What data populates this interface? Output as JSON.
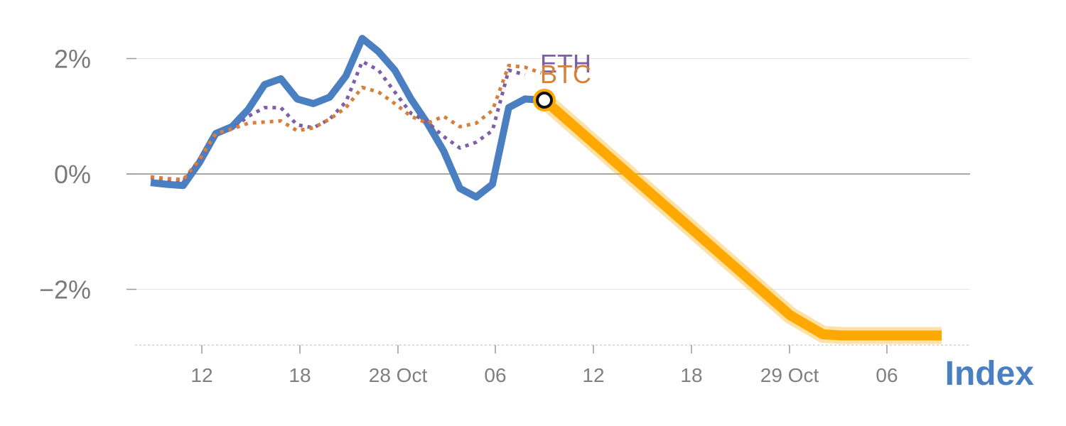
{
  "chart_data": {
    "type": "line",
    "title": "Index",
    "xlabel": "",
    "ylabel": "",
    "ylim": [
      -2.95,
      2.9
    ],
    "x_tick_labels": [
      "12",
      "18",
      "28 Oct",
      "06",
      "12",
      "18",
      "29 Oct",
      "06"
    ],
    "y_ticks": [
      {
        "value": 2,
        "label": "2%"
      },
      {
        "value": 0,
        "label": "0%"
      },
      {
        "value": -2,
        "label": "−2%"
      }
    ],
    "zero_line": true,
    "grid": true,
    "series": [
      {
        "name": "",
        "style": "solid",
        "color": "#4a7fc1",
        "values": [
          -0.15,
          -0.18,
          -0.2,
          0.2,
          0.7,
          0.82,
          1.12,
          1.55,
          1.65,
          1.3,
          1.22,
          1.33,
          1.7,
          2.35,
          2.12,
          1.8,
          1.3,
          0.88,
          0.4,
          -0.25,
          -0.4,
          -0.18,
          1.15,
          1.3,
          1.28
        ]
      },
      {
        "name": "ETH",
        "style": "dotted",
        "color": "#7d5fa6",
        "values": [
          -0.06,
          -0.1,
          -0.12,
          0.25,
          0.68,
          0.78,
          1.0,
          1.15,
          1.15,
          0.85,
          0.8,
          0.95,
          1.25,
          1.95,
          1.8,
          1.42,
          1.05,
          0.9,
          0.65,
          0.45,
          0.55,
          0.75,
          1.8,
          1.72
        ]
      },
      {
        "name": "BTC",
        "style": "dotted",
        "color": "#d6803a",
        "values": [
          -0.05,
          -0.08,
          -0.1,
          0.25,
          0.7,
          0.78,
          0.88,
          0.9,
          0.92,
          0.75,
          0.8,
          0.95,
          1.15,
          1.5,
          1.42,
          1.22,
          1.0,
          0.88,
          1.0,
          0.82,
          0.88,
          1.1,
          1.88,
          1.85,
          1.75
        ]
      },
      {
        "name": "",
        "style": "thick",
        "color": "#ffa800",
        "values": [
          1.28,
          -2.45,
          -2.78,
          -2.8,
          -2.8
        ]
      }
    ],
    "marker": {
      "value": 1.28
    }
  }
}
